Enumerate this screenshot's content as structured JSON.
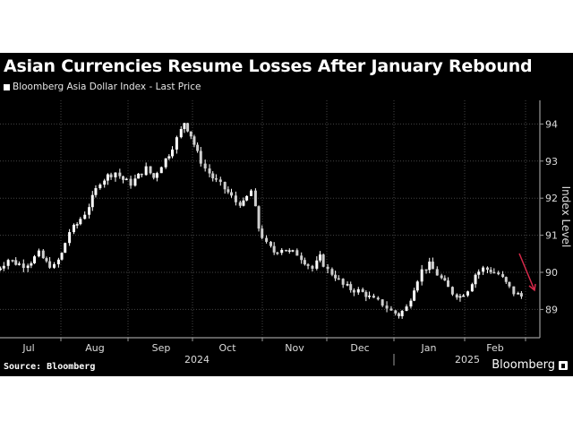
{
  "header": {
    "title": "Asian Currencies Resume Losses After January Rebound",
    "legend_label": "Bloomberg Asia Dollar Index - Last Price"
  },
  "footer": {
    "source": "Source: Bloomberg",
    "brand": "Bloomberg"
  },
  "colors": {
    "background": "#000000",
    "candle": "#ffffff",
    "grid": "#444444",
    "axis": "#9a9a9a",
    "arrow": "#d6294a"
  },
  "chart_data": {
    "type": "candlestick",
    "title": "Asian Currencies Resume Losses After January Rebound",
    "series_name": "Bloomberg Asia Dollar Index - Last Price",
    "xlabel": "",
    "ylabel": "Index Level",
    "ylim": [
      88.3,
      94.8
    ],
    "yticks": [
      89,
      90,
      91,
      92,
      93,
      94
    ],
    "y_axis_position": "right",
    "grid": true,
    "month_labels": [
      "Jul",
      "Aug",
      "Sep",
      "Oct",
      "Nov",
      "Dec",
      "Jan",
      "Feb"
    ],
    "year_labels": [
      "2024",
      "2025"
    ],
    "x": [
      "2024-07-02",
      "2024-07-05",
      "2024-07-09",
      "2024-07-12",
      "2024-07-16",
      "2024-07-19",
      "2024-07-23",
      "2024-07-26",
      "2024-07-30",
      "2024-08-02",
      "2024-08-06",
      "2024-08-09",
      "2024-08-13",
      "2024-08-16",
      "2024-08-20",
      "2024-08-23",
      "2024-08-27",
      "2024-08-30",
      "2024-09-03",
      "2024-09-06",
      "2024-09-10",
      "2024-09-13",
      "2024-09-17",
      "2024-09-20",
      "2024-09-24",
      "2024-09-27",
      "2024-09-30",
      "2024-10-03",
      "2024-10-07",
      "2024-10-10",
      "2024-10-14",
      "2024-10-17",
      "2024-10-21",
      "2024-10-24",
      "2024-10-28",
      "2024-10-31",
      "2024-11-04",
      "2024-11-07",
      "2024-11-11",
      "2024-11-14",
      "2024-11-18",
      "2024-11-21",
      "2024-11-25",
      "2024-11-28",
      "2024-12-02",
      "2024-12-05",
      "2024-12-09",
      "2024-12-12",
      "2024-12-16",
      "2024-12-19",
      "2024-12-23",
      "2024-12-27",
      "2024-12-31",
      "2025-01-03",
      "2025-01-07",
      "2025-01-10",
      "2025-01-14",
      "2025-01-17",
      "2025-01-21",
      "2025-01-24",
      "2025-01-28",
      "2025-01-31",
      "2025-02-04",
      "2025-02-07",
      "2025-02-11",
      "2025-02-14",
      "2025-02-18",
      "2025-02-21",
      "2025-02-25",
      "2025-02-28"
    ],
    "values": [
      90.05,
      90.15,
      90.35,
      90.25,
      90.2,
      90.3,
      90.5,
      90.25,
      90.15,
      90.5,
      91.1,
      91.3,
      91.6,
      92.0,
      92.45,
      92.6,
      92.7,
      92.5,
      92.4,
      92.6,
      92.8,
      92.55,
      92.9,
      93.2,
      93.6,
      94.05,
      93.7,
      93.2,
      92.8,
      92.55,
      92.35,
      92.15,
      91.9,
      91.85,
      92.2,
      91.2,
      90.75,
      90.55,
      90.65,
      90.55,
      90.5,
      90.3,
      90.1,
      90.4,
      90.05,
      89.9,
      89.65,
      89.55,
      89.5,
      89.4,
      89.25,
      89.15,
      88.95,
      88.85,
      89.05,
      89.6,
      90.05,
      90.2,
      89.95,
      89.7,
      89.45,
      89.35,
      89.55,
      89.95,
      90.1,
      90.05,
      89.95,
      89.7,
      89.45,
      89.35
    ],
    "annotations": [
      {
        "type": "arrow",
        "color": "#d6294a",
        "from": "2025-02-18 ~90.4",
        "to": "end of Feb ~89.4",
        "meaning": "downward trend"
      }
    ]
  }
}
